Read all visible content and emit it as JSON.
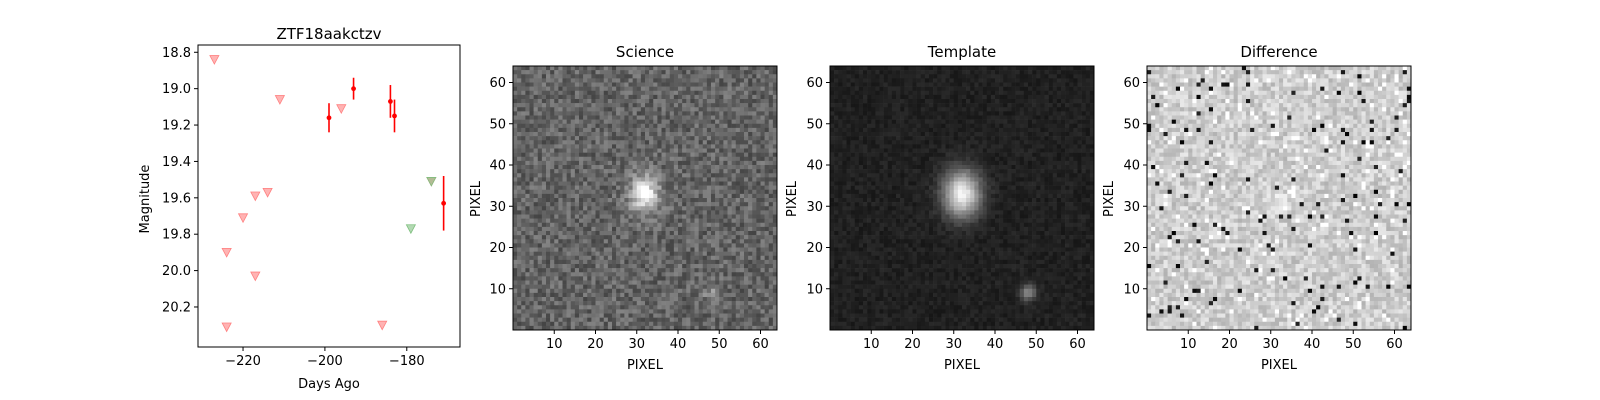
{
  "chart_data": [
    {
      "type": "scatter",
      "title": "ZTF18aakctzv",
      "xlabel": "Days Ago",
      "ylabel": "Magnitude",
      "xlim": [
        -231,
        -167
      ],
      "ylim": [
        20.42,
        18.76
      ],
      "y_inverted": true,
      "xticks": [
        "−220",
        "−200",
        "−180"
      ],
      "yticks": [
        "18.8",
        "19.0",
        "19.2",
        "19.4",
        "19.6",
        "19.8",
        "20.0",
        "20.2"
      ],
      "detections": [
        {
          "x": -199,
          "y": 19.16,
          "err": 0.08,
          "color": "#ff0000"
        },
        {
          "x": -193,
          "y": 19.0,
          "err": 0.06,
          "color": "#ff0000"
        },
        {
          "x": -184,
          "y": 19.07,
          "err": 0.09,
          "color": "#ff0000"
        },
        {
          "x": -183,
          "y": 19.15,
          "err": 0.09,
          "color": "#ff0000"
        },
        {
          "x": -171,
          "y": 19.63,
          "err": 0.15,
          "color": "#ff0000"
        }
      ],
      "upper_limits": [
        {
          "x": -227,
          "y": 18.84,
          "band": "r"
        },
        {
          "x": -224,
          "y": 19.9,
          "band": "r"
        },
        {
          "x": -224,
          "y": 20.31,
          "band": "r"
        },
        {
          "x": -220,
          "y": 19.71,
          "band": "r"
        },
        {
          "x": -217,
          "y": 19.59,
          "band": "r"
        },
        {
          "x": -217,
          "y": 20.03,
          "band": "r"
        },
        {
          "x": -214,
          "y": 19.57,
          "band": "r"
        },
        {
          "x": -211,
          "y": 19.06,
          "band": "r"
        },
        {
          "x": -196,
          "y": 19.11,
          "band": "r"
        },
        {
          "x": -186,
          "y": 20.3,
          "band": "r"
        },
        {
          "x": -174,
          "y": 19.51,
          "band": "r"
        },
        {
          "x": -174,
          "y": 19.51,
          "band": "g"
        },
        {
          "x": -179,
          "y": 19.77,
          "band": "g"
        }
      ],
      "band_colors": {
        "r": "#ff8080",
        "g": "#80c080"
      }
    },
    {
      "type": "heatmap",
      "title": "Science",
      "xlabel": "PIXEL",
      "ylabel": "PIXEL",
      "xlim": [
        0,
        64
      ],
      "ylim": [
        0,
        64
      ],
      "xticks": [
        "10",
        "20",
        "30",
        "40",
        "50",
        "60"
      ],
      "yticks": [
        "10",
        "20",
        "30",
        "40",
        "50",
        "60"
      ],
      "sources": [
        {
          "x": 32,
          "y": 33,
          "amp": 150,
          "sx": 2.4,
          "sy": 3.2
        },
        {
          "x": 48,
          "y": 9,
          "amp": 45,
          "sx": 1.3,
          "sy": 1.2
        }
      ],
      "background": 100,
      "noise": 32
    },
    {
      "type": "heatmap",
      "title": "Template",
      "xlabel": "PIXEL",
      "ylabel": "PIXEL",
      "xlim": [
        0,
        64
      ],
      "ylim": [
        0,
        64
      ],
      "xticks": [
        "10",
        "20",
        "30",
        "40",
        "50",
        "60"
      ],
      "yticks": [
        "10",
        "20",
        "30",
        "40",
        "50",
        "60"
      ],
      "sources": [
        {
          "x": 32,
          "y": 33,
          "amp": 210,
          "sx": 3.2,
          "sy": 4.0
        },
        {
          "x": 48,
          "y": 9,
          "amp": 110,
          "sx": 1.4,
          "sy": 1.3
        }
      ],
      "background": 32,
      "noise": 10
    },
    {
      "type": "heatmap",
      "title": "Difference",
      "xlabel": "PIXEL",
      "ylabel": "PIXEL",
      "xlim": [
        0,
        64
      ],
      "ylim": [
        0,
        64
      ],
      "xticks": [
        "10",
        "20",
        "30",
        "40",
        "50",
        "60"
      ],
      "yticks": [
        "10",
        "20",
        "30",
        "40",
        "50",
        "60"
      ],
      "sources": [
        {
          "x": 32,
          "y": 32,
          "amp": 40,
          "sx": 1.2,
          "sy": 1.2
        }
      ],
      "background": 205,
      "noise": 28
    }
  ]
}
